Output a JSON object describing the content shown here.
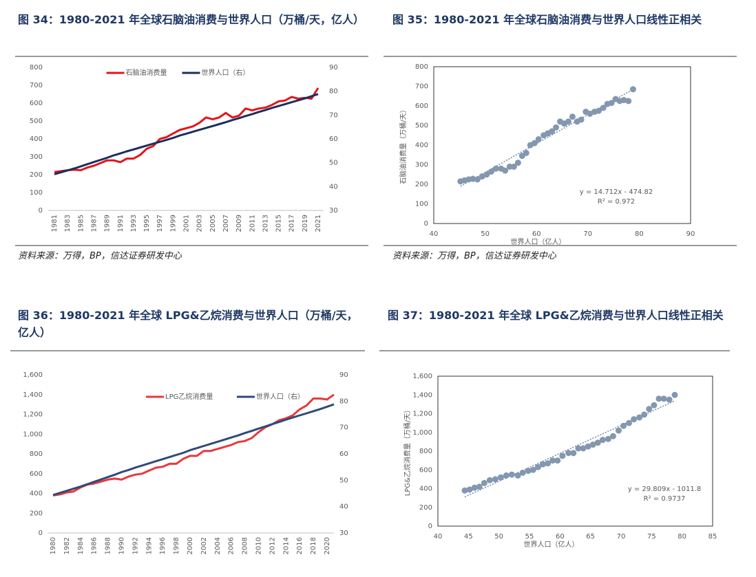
{
  "chart_data": [
    {
      "type": "line",
      "title": "图 34：1980-2021 年全球石脑油消费与世界人口（万桶/天，亿人）",
      "source": "资料来源：万得，BP，信达证券研发中心",
      "categories": [
        "1981",
        null,
        "1983",
        null,
        "1985",
        null,
        "1987",
        null,
        "1989",
        null,
        "1991",
        null,
        "1993",
        null,
        "1995",
        null,
        "1997",
        null,
        "1999",
        null,
        "2001",
        null,
        "2003",
        null,
        "2005",
        null,
        "2007",
        null,
        "2009",
        null,
        "2011",
        null,
        "2013",
        null,
        "2015",
        null,
        "2017",
        null,
        "2019",
        null,
        "2021"
      ],
      "series": [
        {
          "name": "石脑油消费量",
          "color": "#e3141b",
          "values": [
            215,
            220,
            225,
            228,
            225,
            240,
            250,
            265,
            280,
            280,
            270,
            290,
            290,
            310,
            345,
            360,
            400,
            410,
            430,
            450,
            460,
            470,
            490,
            520,
            510,
            520,
            545,
            520,
            530,
            570,
            560,
            570,
            575,
            590,
            610,
            615,
            635,
            625,
            630,
            625,
            685
          ]
        },
        {
          "name": "世界人口（右）",
          "color": "#1a2f5e",
          "axis": "y2",
          "values": [
            45.2,
            46.0,
            46.8,
            47.6,
            48.5,
            49.4,
            50.3,
            51.2,
            52.1,
            53.1,
            53.9,
            54.8,
            55.6,
            56.4,
            57.2,
            58.0,
            58.8,
            59.6,
            60.4,
            61.4,
            62.2,
            63.0,
            63.8,
            64.6,
            65.4,
            66.2,
            67.0,
            67.9,
            68.7,
            69.6,
            70.4,
            71.3,
            72.1,
            73.0,
            73.8,
            74.6,
            75.4,
            76.2,
            77.0,
            77.9,
            78.8
          ]
        }
      ],
      "ylim": [
        0,
        800
      ],
      "yticks": [
        0,
        100,
        200,
        300,
        400,
        500,
        600,
        700,
        800
      ],
      "y2lim": [
        30,
        90
      ],
      "y2ticks": [
        30,
        40,
        50,
        60,
        70,
        80,
        90
      ],
      "legend": "upper center"
    },
    {
      "type": "scatter",
      "title": "图 35：1980-2021 年全球石脑油消费与世界人口线性正相关",
      "source": "资料来源：万得，BP，信达证券研发中心",
      "x_label": "世界人口（亿人）",
      "y_label": "石脑油消费量（万桶/天）",
      "x": [
        45.2,
        46.0,
        46.8,
        47.6,
        48.5,
        49.4,
        50.3,
        51.2,
        52.1,
        53.1,
        53.9,
        54.8,
        55.6,
        56.4,
        57.2,
        58.0,
        58.8,
        59.6,
        60.4,
        61.4,
        62.2,
        63.0,
        63.8,
        64.6,
        65.4,
        66.2,
        67.0,
        67.9,
        68.7,
        69.6,
        70.4,
        71.3,
        72.1,
        73.0,
        73.8,
        74.6,
        75.4,
        76.2,
        77.0,
        77.9,
        78.8
      ],
      "values": [
        215,
        220,
        225,
        228,
        225,
        240,
        250,
        265,
        280,
        280,
        270,
        290,
        290,
        310,
        345,
        360,
        400,
        410,
        430,
        450,
        460,
        470,
        490,
        520,
        510,
        520,
        545,
        520,
        530,
        570,
        560,
        570,
        575,
        590,
        610,
        615,
        635,
        625,
        630,
        625,
        685
      ],
      "color": "#8497b0",
      "xlim": [
        40,
        90
      ],
      "xticks": [
        40,
        50,
        60,
        70,
        80,
        90
      ],
      "ylim": [
        0,
        800
      ],
      "yticks": [
        0,
        100,
        200,
        300,
        400,
        500,
        600,
        700,
        800
      ],
      "trendline": {
        "slope": 14.712,
        "intercept": -474.82
      },
      "annotations": [
        "y = 14.712x - 474.82",
        "R² = 0.972"
      ]
    },
    {
      "type": "line",
      "title": "图 36：1980-2021 年全球 LPG&乙烷消费与世界人口（万桶/天，亿人）",
      "categories": [
        "1980",
        null,
        "1982",
        null,
        "1984",
        null,
        "1986",
        null,
        "1988",
        null,
        "1990",
        null,
        "1992",
        null,
        "1994",
        null,
        "1996",
        null,
        "1998",
        null,
        "2000",
        null,
        "2002",
        null,
        "2004",
        null,
        "2006",
        null,
        "2008",
        null,
        "2010",
        null,
        "2012",
        null,
        "2014",
        null,
        "2016",
        null,
        "2018",
        null,
        "2020",
        null
      ],
      "series": [
        {
          "name": "LPG乙烷消费量",
          "color": "#e8383d",
          "values": [
            380,
            390,
            410,
            420,
            460,
            490,
            500,
            520,
            540,
            550,
            540,
            570,
            590,
            600,
            630,
            660,
            670,
            700,
            700,
            750,
            780,
            780,
            830,
            830,
            850,
            870,
            890,
            920,
            930,
            960,
            1020,
            1070,
            1100,
            1140,
            1160,
            1190,
            1250,
            1290,
            1360,
            1360,
            1350,
            1400
          ]
        },
        {
          "name": "世界人口（右）",
          "color": "#2e4a7a",
          "axis": "y2",
          "values": [
            44.4,
            45.2,
            46.0,
            46.8,
            47.6,
            48.5,
            49.4,
            50.3,
            51.2,
            52.1,
            53.1,
            53.9,
            54.8,
            55.6,
            56.4,
            57.2,
            58.0,
            58.8,
            59.6,
            60.4,
            61.4,
            62.2,
            63.0,
            63.8,
            64.6,
            65.4,
            66.2,
            67.0,
            67.9,
            68.7,
            69.6,
            70.4,
            71.3,
            72.1,
            73.0,
            73.8,
            74.6,
            75.4,
            76.2,
            77.0,
            77.9,
            78.8
          ]
        }
      ],
      "ylim": [
        0,
        1600
      ],
      "yticks": [
        0,
        200,
        400,
        600,
        800,
        {
          "value": 1000,
          "label": "1,000"
        },
        {
          "value": 1200,
          "label": "1,200"
        },
        {
          "value": 1400,
          "label": "1,400"
        },
        {
          "value": 1600,
          "label": "1,600"
        }
      ],
      "y2lim": [
        30,
        90
      ],
      "y2ticks": [
        30,
        40,
        50,
        60,
        70,
        80,
        90
      ],
      "legend": "upper right"
    },
    {
      "type": "scatter",
      "title": "图 37：1980-2021 年全球 LPG&乙烷消费与世界人口线性正相关",
      "x_label": "世界人口（亿人）",
      "y_label": "LPG&乙烷消费量（万桶/天）",
      "x": [
        44.4,
        45.2,
        46.0,
        46.8,
        47.6,
        48.5,
        49.4,
        50.3,
        51.2,
        52.1,
        53.1,
        53.9,
        54.8,
        55.6,
        56.4,
        57.2,
        58.0,
        58.8,
        59.6,
        60.4,
        61.4,
        62.2,
        63.0,
        63.8,
        64.6,
        65.4,
        66.2,
        67.0,
        67.9,
        68.7,
        69.6,
        70.4,
        71.3,
        72.1,
        73.0,
        73.8,
        74.6,
        75.4,
        76.2,
        77.0,
        77.9,
        78.8
      ],
      "values": [
        380,
        390,
        410,
        420,
        460,
        490,
        500,
        520,
        540,
        550,
        540,
        570,
        590,
        600,
        630,
        660,
        670,
        700,
        700,
        750,
        780,
        780,
        830,
        830,
        850,
        870,
        890,
        920,
        930,
        960,
        1020,
        1070,
        1100,
        1140,
        1160,
        1190,
        1250,
        1290,
        1360,
        1360,
        1350,
        1400
      ],
      "color": "#8497b0",
      "xlim": [
        40,
        85
      ],
      "xticks": [
        40,
        45,
        50,
        55,
        60,
        65,
        70,
        75,
        80,
        85
      ],
      "ylim": [
        0,
        1600
      ],
      "yticks": [
        0,
        200,
        400,
        600,
        800,
        {
          "value": 1000,
          "label": "1,000"
        },
        {
          "value": 1200,
          "label": "1,200"
        },
        {
          "value": 1400,
          "label": "1,400"
        },
        {
          "value": 1600,
          "label": "1,600"
        }
      ],
      "trendline": {
        "slope": 29.809,
        "intercept": -1011.8
      },
      "annotations": [
        "y = 29.809x - 1011.8",
        "R² = 0.9737"
      ]
    }
  ]
}
